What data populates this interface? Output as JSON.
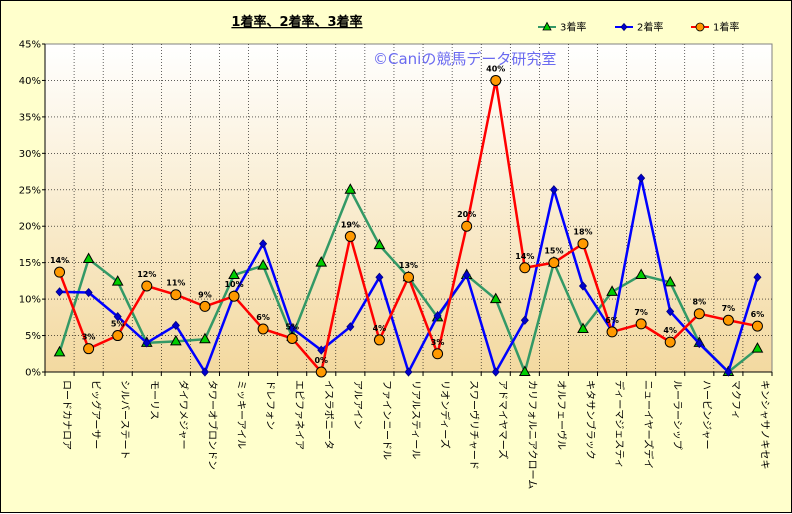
{
  "chart_data": {
    "type": "line",
    "title": "1着率、2着率、3着率",
    "watermark": "©Caniの競馬データ研究室",
    "xlabel": "",
    "ylabel": "",
    "ylim": [
      0,
      45
    ],
    "yticks": [
      "0%",
      "5%",
      "10%",
      "15%",
      "20%",
      "25%",
      "30%",
      "35%",
      "40%",
      "45%"
    ],
    "grid": true,
    "legend_position": "top-right",
    "categories": [
      "ロードカナロア",
      "ビッグアーサー",
      "シルバーステート",
      "モーリス",
      "ダイワメジャー",
      "タワーオブロンドン",
      "ミッキーアイル",
      "ドレフォン",
      "エピファネイア",
      "イスラボニータ",
      "アルアイン",
      "ファインニードル",
      "リアルスティール",
      "リオンディーズ",
      "スワーヴリチャード",
      "アドマイヤマーズ",
      "カリフォルニアクローム",
      "オルフェーヴル",
      "キタサンブラック",
      "ディーマジェスティ",
      "ニューイヤーズデイ",
      "ルーラーシップ",
      "ハービンジャー",
      "マクフィ",
      "キンシャサノキセキ"
    ],
    "series": [
      {
        "name": "3着率",
        "color": "#339966",
        "marker": "triangle",
        "marker_color": "#00cc00",
        "values": [
          2.7,
          15.5,
          12.4,
          4.0,
          4.2,
          4.5,
          13.3,
          14.6,
          4.8,
          15.0,
          25.0,
          17.4,
          13.0,
          7.5,
          13.3,
          10.0,
          0.0,
          15.0,
          5.9,
          11.0,
          13.3,
          12.3,
          4.0,
          0.0,
          3.2
        ]
      },
      {
        "name": "2着率",
        "color": "#0000ff",
        "marker": "diamond",
        "marker_color": "#0000cc",
        "values": [
          11.0,
          10.9,
          7.6,
          4.0,
          6.4,
          0.0,
          10.6,
          17.6,
          6.0,
          3.0,
          6.2,
          13.0,
          0.0,
          7.7,
          13.3,
          0.0,
          7.1,
          25.0,
          11.8,
          5.6,
          26.6,
          8.3,
          3.9,
          0.0,
          13.0
        ]
      },
      {
        "name": "1着率",
        "color": "#ff0000",
        "marker": "circle",
        "marker_color": "#ff9900",
        "values": [
          13.7,
          3.2,
          5.0,
          11.8,
          10.6,
          9.0,
          10.4,
          5.9,
          4.6,
          0.0,
          18.6,
          4.4,
          13.0,
          2.5,
          20.0,
          40.0,
          14.3,
          15.0,
          17.6,
          5.5,
          6.6,
          4.1,
          8.0,
          7.1,
          6.3
        ]
      }
    ],
    "data_labels": [
      "14%",
      "3%",
      "5%",
      "12%",
      "11%",
      "9%",
      "10%",
      "6%",
      "5%",
      "0%",
      "19%",
      "4%",
      "13%",
      "3%",
      "20%",
      "40%",
      "14%",
      "15%",
      "18%",
      "6%",
      "7%",
      "4%",
      "8%",
      "7%",
      "6%"
    ]
  }
}
